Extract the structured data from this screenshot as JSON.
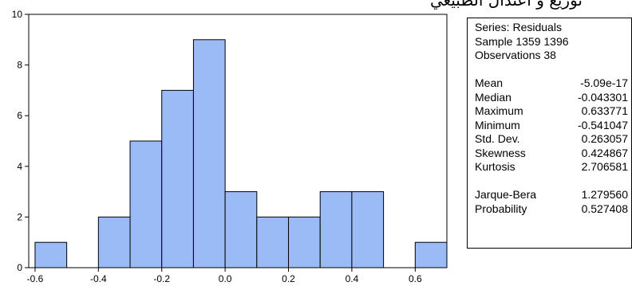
{
  "page_header_text": "توزيع و اعتدال الطبيعي",
  "chart_data": {
    "type": "bar",
    "title": "",
    "xlabel": "",
    "ylabel": "",
    "bins": [
      {
        "from": -0.6,
        "to": -0.5,
        "count": 1
      },
      {
        "from": -0.5,
        "to": -0.4,
        "count": 0
      },
      {
        "from": -0.4,
        "to": -0.3,
        "count": 2
      },
      {
        "from": -0.3,
        "to": -0.2,
        "count": 5
      },
      {
        "from": -0.2,
        "to": -0.1,
        "count": 7
      },
      {
        "from": -0.1,
        "to": 0.0,
        "count": 9
      },
      {
        "from": 0.0,
        "to": 0.1,
        "count": 3
      },
      {
        "from": 0.1,
        "to": 0.2,
        "count": 2
      },
      {
        "from": 0.2,
        "to": 0.3,
        "count": 2
      },
      {
        "from": 0.3,
        "to": 0.4,
        "count": 3
      },
      {
        "from": 0.4,
        "to": 0.5,
        "count": 3
      },
      {
        "from": 0.5,
        "to": 0.6,
        "count": 0
      },
      {
        "from": 0.6,
        "to": 0.7,
        "count": 1
      }
    ],
    "xlim": [
      -0.62,
      0.7
    ],
    "ylim": [
      0,
      10
    ],
    "x_ticks": [
      "-0.6",
      "-0.4",
      "-0.2",
      "0.0",
      "0.2",
      "0.4",
      "0.6"
    ],
    "y_ticks": [
      "0",
      "2",
      "4",
      "6",
      "8",
      "10"
    ],
    "bar_color": "#9bbbf7",
    "grid": false
  },
  "stats": {
    "series_line": "Series: Residuals",
    "sample_line": "Sample 1359 1396",
    "observations_line": "Observations 38",
    "rows": [
      {
        "name": "Mean",
        "value": "-5.09e-17"
      },
      {
        "name": "Median",
        "value": "-0.043301"
      },
      {
        "name": "Maximum",
        "value": "0.633771"
      },
      {
        "name": "Minimum",
        "value": "-0.541047"
      },
      {
        "name": "Std. Dev.",
        "value": "0.263057"
      },
      {
        "name": "Skewness",
        "value": "0.424867"
      },
      {
        "name": "Kurtosis",
        "value": "2.706581"
      }
    ],
    "test_rows": [
      {
        "name": "Jarque-Bera",
        "value": "1.279560"
      },
      {
        "name": "Probability",
        "value": "0.527408"
      }
    ]
  }
}
